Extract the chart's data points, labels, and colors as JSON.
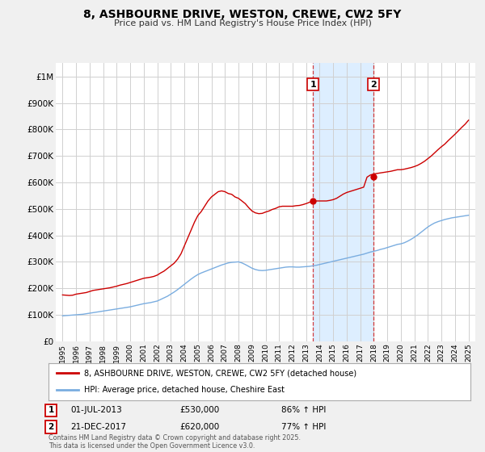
{
  "title": "8, ASHBOURNE DRIVE, WESTON, CREWE, CW2 5FY",
  "subtitle": "Price paid vs. HM Land Registry's House Price Index (HPI)",
  "bg_color": "#f0f0f0",
  "plot_bg_color": "#ffffff",
  "grid_color": "#d0d0d0",
  "red_line_color": "#cc0000",
  "blue_line_color": "#7aade0",
  "highlight_bg": "#ddeeff",
  "vline1_x": 2013.5,
  "vline2_x": 2017.97,
  "point1_x": 2013.5,
  "point1_y": 530000,
  "point2_x": 2017.97,
  "point2_y": 620000,
  "sale1_date": "01-JUL-2013",
  "sale1_price": "£530,000",
  "sale1_hpi": "86% ↑ HPI",
  "sale2_date": "21-DEC-2017",
  "sale2_price": "£620,000",
  "sale2_hpi": "77% ↑ HPI",
  "legend_label1": "8, ASHBOURNE DRIVE, WESTON, CREWE, CW2 5FY (detached house)",
  "legend_label2": "HPI: Average price, detached house, Cheshire East",
  "footer": "Contains HM Land Registry data © Crown copyright and database right 2025.\nThis data is licensed under the Open Government Licence v3.0.",
  "ylim": [
    0,
    1050000
  ],
  "yticks": [
    0,
    100000,
    200000,
    300000,
    400000,
    500000,
    600000,
    700000,
    800000,
    900000,
    1000000
  ],
  "ytick_labels": [
    "£0",
    "£100K",
    "£200K",
    "£300K",
    "£400K",
    "£500K",
    "£600K",
    "£700K",
    "£800K",
    "£900K",
    "£1M"
  ],
  "xlim": [
    1994.5,
    2025.5
  ],
  "xticks": [
    1995,
    1996,
    1997,
    1998,
    1999,
    2000,
    2001,
    2002,
    2003,
    2004,
    2005,
    2006,
    2007,
    2008,
    2009,
    2010,
    2011,
    2012,
    2013,
    2014,
    2015,
    2016,
    2017,
    2018,
    2019,
    2020,
    2021,
    2022,
    2023,
    2024,
    2025
  ],
  "red_x": [
    1995.0,
    1995.25,
    1995.5,
    1995.75,
    1996.0,
    1996.25,
    1996.5,
    1996.75,
    1997.0,
    1997.25,
    1997.5,
    1997.75,
    1998.0,
    1998.25,
    1998.5,
    1998.75,
    1999.0,
    1999.25,
    1999.5,
    1999.75,
    2000.0,
    2000.25,
    2000.5,
    2000.75,
    2001.0,
    2001.25,
    2001.5,
    2001.75,
    2002.0,
    2002.25,
    2002.5,
    2002.75,
    2003.0,
    2003.25,
    2003.5,
    2003.75,
    2004.0,
    2004.25,
    2004.5,
    2004.75,
    2005.0,
    2005.25,
    2005.5,
    2005.75,
    2006.0,
    2006.25,
    2006.5,
    2006.75,
    2007.0,
    2007.25,
    2007.5,
    2007.75,
    2008.0,
    2008.25,
    2008.5,
    2008.75,
    2009.0,
    2009.25,
    2009.5,
    2009.75,
    2010.0,
    2010.25,
    2010.5,
    2010.75,
    2011.0,
    2011.25,
    2011.5,
    2011.75,
    2012.0,
    2012.25,
    2012.5,
    2012.75,
    2013.0,
    2013.25,
    2013.5,
    2013.75,
    2014.0,
    2014.25,
    2014.5,
    2014.75,
    2015.0,
    2015.25,
    2015.5,
    2015.75,
    2016.0,
    2016.25,
    2016.5,
    2016.75,
    2017.0,
    2017.25,
    2017.5,
    2017.75,
    2018.0,
    2018.25,
    2018.5,
    2018.75,
    2019.0,
    2019.25,
    2019.5,
    2019.75,
    2020.0,
    2020.25,
    2020.5,
    2020.75,
    2021.0,
    2021.25,
    2021.5,
    2021.75,
    2022.0,
    2022.25,
    2022.5,
    2022.75,
    2023.0,
    2023.25,
    2023.5,
    2023.75,
    2024.0,
    2024.25,
    2024.5,
    2024.75,
    2025.0
  ],
  "red_y": [
    175000,
    174000,
    173000,
    174000,
    178000,
    180000,
    182000,
    184000,
    188000,
    192000,
    194000,
    196000,
    198000,
    200000,
    202000,
    205000,
    208000,
    212000,
    215000,
    218000,
    222000,
    226000,
    230000,
    234000,
    238000,
    240000,
    242000,
    245000,
    250000,
    258000,
    265000,
    275000,
    285000,
    295000,
    310000,
    330000,
    360000,
    390000,
    420000,
    450000,
    475000,
    490000,
    510000,
    530000,
    545000,
    555000,
    565000,
    568000,
    565000,
    558000,
    555000,
    545000,
    540000,
    530000,
    520000,
    505000,
    492000,
    485000,
    482000,
    483000,
    488000,
    492000,
    498000,
    502000,
    508000,
    510000,
    510000,
    510000,
    510000,
    512000,
    513000,
    516000,
    520000,
    525000,
    530000,
    530000,
    530000,
    530000,
    530000,
    532000,
    535000,
    540000,
    548000,
    556000,
    562000,
    566000,
    570000,
    574000,
    578000,
    582000,
    620000,
    628000,
    632000,
    634000,
    636000,
    638000,
    640000,
    642000,
    645000,
    648000,
    648000,
    650000,
    653000,
    656000,
    660000,
    665000,
    672000,
    680000,
    690000,
    700000,
    712000,
    724000,
    735000,
    745000,
    758000,
    770000,
    782000,
    795000,
    808000,
    820000,
    835000
  ],
  "blue_x": [
    1995.0,
    1995.25,
    1995.5,
    1995.75,
    1996.0,
    1996.25,
    1996.5,
    1996.75,
    1997.0,
    1997.25,
    1997.5,
    1997.75,
    1998.0,
    1998.25,
    1998.5,
    1998.75,
    1999.0,
    1999.25,
    1999.5,
    1999.75,
    2000.0,
    2000.25,
    2000.5,
    2000.75,
    2001.0,
    2001.25,
    2001.5,
    2001.75,
    2002.0,
    2002.25,
    2002.5,
    2002.75,
    2003.0,
    2003.25,
    2003.5,
    2003.75,
    2004.0,
    2004.25,
    2004.5,
    2004.75,
    2005.0,
    2005.25,
    2005.5,
    2005.75,
    2006.0,
    2006.25,
    2006.5,
    2006.75,
    2007.0,
    2007.25,
    2007.5,
    2007.75,
    2008.0,
    2008.25,
    2008.5,
    2008.75,
    2009.0,
    2009.25,
    2009.5,
    2009.75,
    2010.0,
    2010.25,
    2010.5,
    2010.75,
    2011.0,
    2011.25,
    2011.5,
    2011.75,
    2012.0,
    2012.25,
    2012.5,
    2012.75,
    2013.0,
    2013.25,
    2013.5,
    2013.75,
    2014.0,
    2014.25,
    2014.5,
    2014.75,
    2015.0,
    2015.25,
    2015.5,
    2015.75,
    2016.0,
    2016.25,
    2016.5,
    2016.75,
    2017.0,
    2017.25,
    2017.5,
    2017.75,
    2018.0,
    2018.25,
    2018.5,
    2018.75,
    2019.0,
    2019.25,
    2019.5,
    2019.75,
    2020.0,
    2020.25,
    2020.5,
    2020.75,
    2021.0,
    2021.25,
    2021.5,
    2021.75,
    2022.0,
    2022.25,
    2022.5,
    2022.75,
    2023.0,
    2023.25,
    2023.5,
    2023.75,
    2024.0,
    2024.25,
    2024.5,
    2024.75,
    2025.0
  ],
  "blue_y": [
    96000,
    97000,
    98000,
    99000,
    100000,
    101000,
    102000,
    104000,
    106000,
    108000,
    110000,
    112000,
    114000,
    116000,
    118000,
    120000,
    122000,
    124000,
    126000,
    128000,
    130000,
    133000,
    136000,
    139000,
    142000,
    144000,
    146000,
    149000,
    152000,
    158000,
    164000,
    170000,
    178000,
    186000,
    195000,
    205000,
    215000,
    225000,
    235000,
    244000,
    252000,
    258000,
    263000,
    268000,
    273000,
    278000,
    283000,
    288000,
    292000,
    296000,
    298000,
    299000,
    300000,
    296000,
    290000,
    283000,
    276000,
    271000,
    268000,
    267000,
    268000,
    270000,
    272000,
    274000,
    276000,
    278000,
    280000,
    281000,
    281000,
    280000,
    280000,
    281000,
    282000,
    283000,
    285000,
    287000,
    290000,
    293000,
    296000,
    299000,
    302000,
    305000,
    308000,
    311000,
    314000,
    317000,
    320000,
    323000,
    326000,
    329000,
    333000,
    337000,
    340000,
    343000,
    347000,
    350000,
    354000,
    358000,
    362000,
    366000,
    368000,
    372000,
    378000,
    385000,
    393000,
    402000,
    412000,
    422000,
    432000,
    440000,
    447000,
    452000,
    456000,
    460000,
    463000,
    466000,
    468000,
    470000,
    472000,
    474000,
    476000
  ]
}
